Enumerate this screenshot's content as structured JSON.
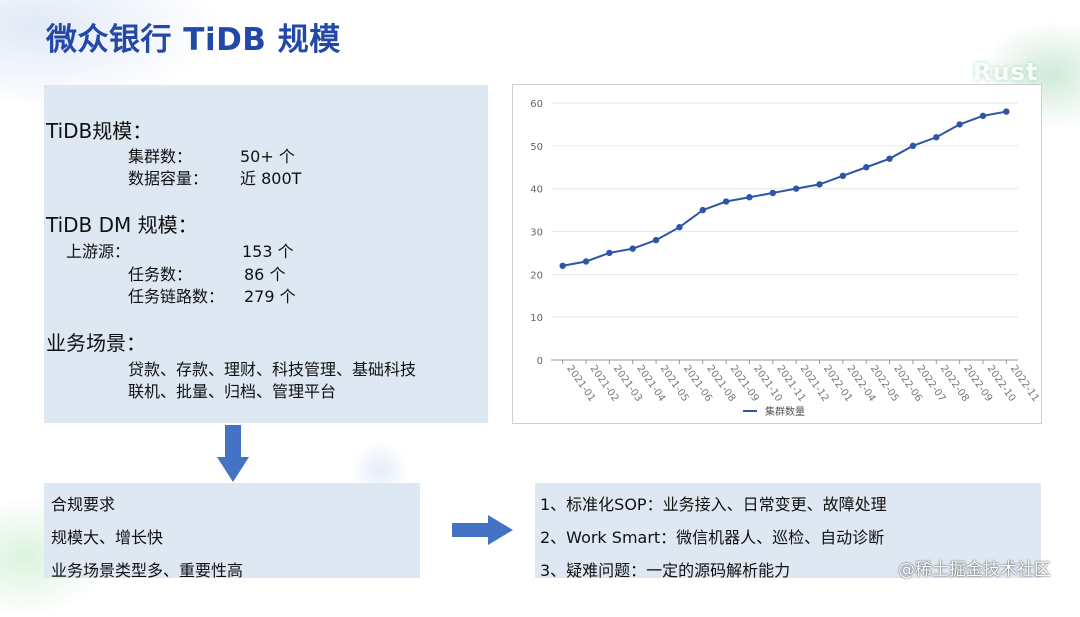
{
  "title": "微众银行 TiDB 规模",
  "watermark": "Rust",
  "tidb_scale": {
    "heading": "TiDB规模：",
    "clusters_label": "集群数：",
    "clusters_value": "50+ 个",
    "capacity_label": "数据容量：",
    "capacity_value": "近 800T"
  },
  "dm_scale": {
    "heading": "TiDB DM 规模：",
    "upstream_label": "上游源：",
    "upstream_value": "153 个",
    "tasks_label": "任务数：",
    "tasks_value": "86 个",
    "links_label": "任务链路数：",
    "links_value": "279 个"
  },
  "scenarios": {
    "heading": "业务场景：",
    "line1": "贷款、存款、理财、科技管理、基础科技",
    "line2": "联机、批量、归档、管理平台"
  },
  "requirements": {
    "line1": "合规要求",
    "line2": "规模大、增长快",
    "line3": "业务场景类型多、重要性高"
  },
  "practices": {
    "line1": "1、标准化SOP：业务接入、日常变更、故障处理",
    "line2": "2、Work Smart：微信机器人、巡检、自动诊断",
    "line3": "3、疑难问题：一定的源码解析能力"
  },
  "footer_badge": "@稀土掘金技术社区",
  "colors": {
    "accent": "#2349a8",
    "panel": "#dde8f3",
    "arrow": "#4472c4",
    "line": "#2e55a8"
  },
  "chart_data": {
    "type": "line",
    "categories": [
      "2021-01",
      "2021-02",
      "2021-03",
      "2021-04",
      "2021-05",
      "2021-06",
      "2021-08",
      "2021-09",
      "2021-10",
      "2021-11",
      "2021-12",
      "2022-01",
      "2022-04",
      "2022-05",
      "2022-06",
      "2022-07",
      "2022-08",
      "2022-09",
      "2022-10",
      "2022-11"
    ],
    "series": [
      {
        "name": "集群数量",
        "values": [
          22,
          23,
          25,
          26,
          28,
          31,
          35,
          37,
          38,
          39,
          40,
          41,
          43,
          45,
          47,
          50,
          52,
          55,
          57,
          58
        ]
      }
    ],
    "yticks": [
      "0",
      "10",
      "20",
      "30",
      "40",
      "50",
      "60"
    ],
    "ylim": [
      0,
      60
    ],
    "grid": true,
    "legend": "bottom-center"
  }
}
